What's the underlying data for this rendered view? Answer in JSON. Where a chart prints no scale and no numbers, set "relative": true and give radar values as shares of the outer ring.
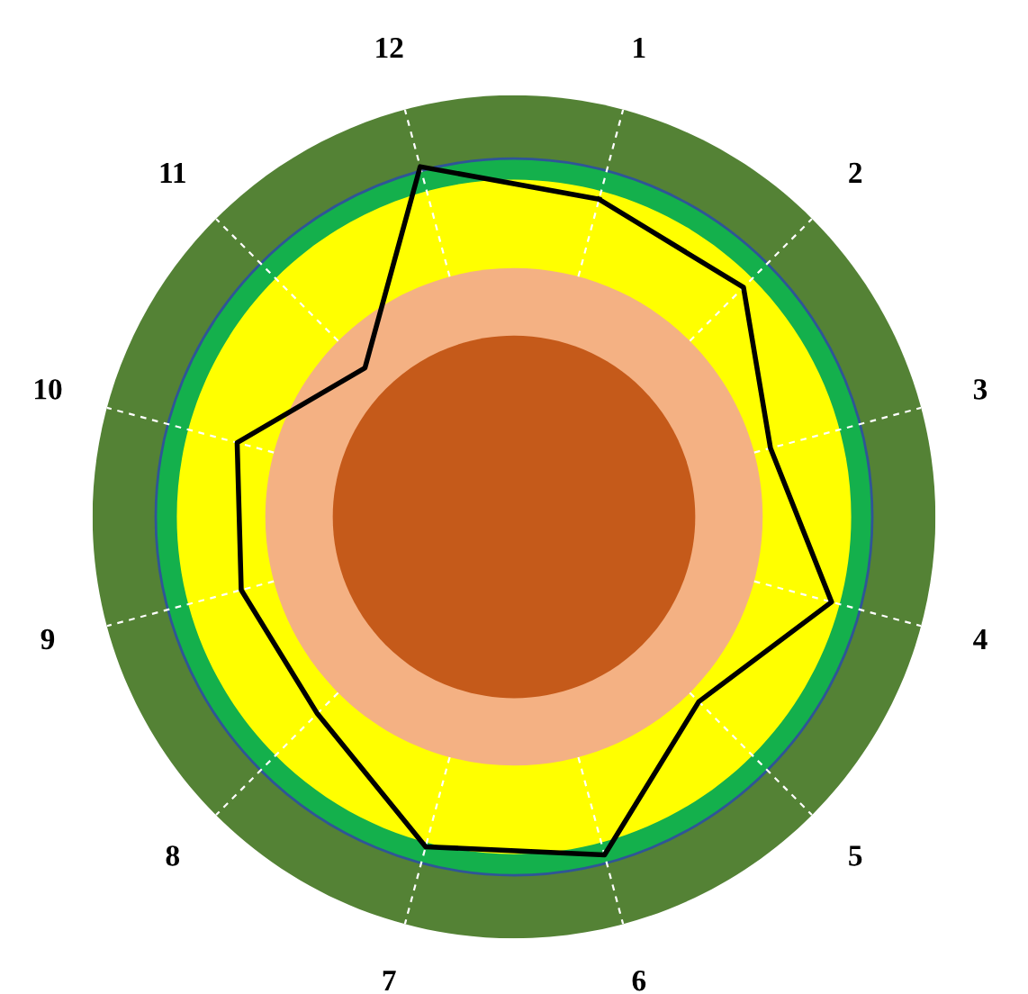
{
  "chart_data": {
    "type": "radar",
    "relative": true,
    "categories": [
      "1",
      "2",
      "3",
      "4",
      "5",
      "6",
      "7",
      "8",
      "9",
      "10",
      "11",
      "12"
    ],
    "series": [
      {
        "color": "#000000",
        "values": [
          0.78,
          0.77,
          0.63,
          0.78,
          0.62,
          0.83,
          0.81,
          0.66,
          0.67,
          0.68,
          0.5,
          0.86
        ]
      }
    ],
    "grid": true,
    "marker": "none",
    "line_style": "solid"
  }
}
